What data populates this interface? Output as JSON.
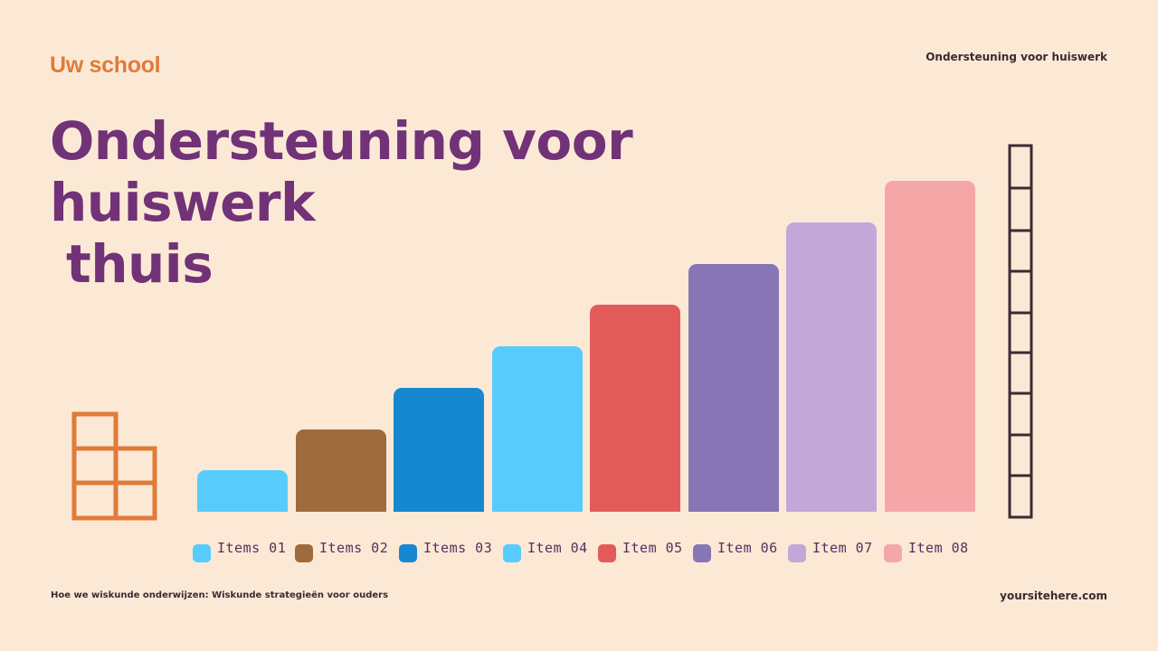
{
  "header": {
    "brand": "Uw school",
    "top_right": "Ondersteuning voor huiswerk"
  },
  "title": {
    "line1": "Ondersteuning voor huiswerk",
    "line2": "thuis"
  },
  "footer": {
    "left": "Hoe we wiskunde onderwijzen: Wiskunde strategieën voor ouders",
    "right": "yoursitehere.com"
  },
  "colors": {
    "background": "#fbe9d6",
    "brand": "#e07b39",
    "title": "#713277",
    "ladder": "#3d2a33"
  },
  "chart_data": {
    "type": "bar",
    "title": "Ondersteuning voor huiswerk thuis",
    "xlabel": "",
    "ylabel": "",
    "grid": false,
    "legend_position": "bottom",
    "categories": [
      "Items 01",
      "Items 02",
      "Items 03",
      "Item 04",
      "Item 05",
      "Item 06",
      "Item 07",
      "Item 08"
    ],
    "values": [
      1,
      2,
      3,
      4,
      5,
      6,
      7,
      8
    ],
    "colors": [
      "#58cbfd",
      "#9e6b3e",
      "#1688d0",
      "#58cbfd",
      "#e35b59",
      "#8676b6",
      "#c3a7d9",
      "#f5a7a8"
    ],
    "ylim": [
      0,
      8
    ]
  },
  "legend": {
    "items": [
      {
        "label": "Items 01",
        "color": "#58cbfd"
      },
      {
        "label": "Items 02",
        "color": "#9e6b3e"
      },
      {
        "label": "Items 03",
        "color": "#1688d0"
      },
      {
        "label": "Item 04",
        "color": "#58cbfd"
      },
      {
        "label": "Item 05",
        "color": "#e35b59"
      },
      {
        "label": "Item 06",
        "color": "#8676b6"
      },
      {
        "label": "Item 07",
        "color": "#c3a7d9"
      },
      {
        "label": "Item 08",
        "color": "#f5a7a8"
      }
    ]
  }
}
